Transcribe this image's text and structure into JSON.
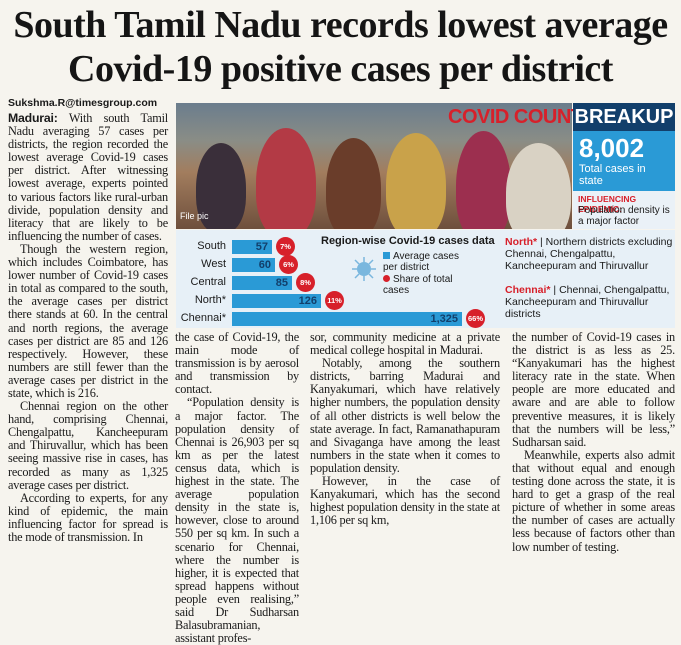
{
  "headline": {
    "line1": "South Tamil Nadu records lowest average",
    "line2": "Covid-19 positive cases per district"
  },
  "byline": "Sukshma.R@timesgroup.com",
  "body": {
    "dateline": "Madurai:",
    "col1": [
      "With south Tamil Nadu averaging 57 cases per districts, the region recorded the lowest average Covid-19 cases per district. After witnessing lowest average, experts pointed to various factors like rural-urban divide, population density and literacy that are likely to be influencing the number of cases.",
      "Though the western region, which includes Coimbatore, has lower number of Covid-19 cases in total as compared to the south, the average cases per district there stands at 60. In the central and north regions, the average cases per district are 85 and 126 respectively. However, these numbers are still fewer than the average cases per district in the state, which is 216.",
      "Chennai region on the other hand, comprising Chennai, Chengalpattu, Kancheepuram and Thiruvallur, which has been seeing massive rise in cases, has recorded as many as 1,325 average cases per district.",
      "According to experts, for any kind of epidemic, the main influencing factor for spread is the mode of transmission. In"
    ],
    "col2": [
      "the case of Covid-19, the main mode of transmission is by aerosol and transmission by contact.",
      "“Population density is a major factor. The population density of Chennai is 26,903 per sq km as per the latest census data, which is highest in the state. The average population density in the state is, however, close to around 550 per sq km. In such a scenario for Chennai, where the number is higher, it is expected that spread happens without people even realising,” said Dr Sudharsan Balasubramanian, assistant profes-"
    ],
    "col3": [
      "sor, community medicine at a private medical college hospital in Madurai.",
      "Notably, among the southern districts, barring Madurai and Kanyakumari, which have relatively higher numbers, the population density of all other districts is well below the state average. In fact, Ramanathapuram and Sivaganga have among the least numbers in the state when it comes to population density.",
      "However, in the case of Kanyakumari, which has the second highest population density in the state at 1,106 per sq km,"
    ],
    "col4": [
      "the number of Covid-19 cases in the district is as less as 25. “Kanyakumari has the highest literacy rate in the state. When people are more educated and aware and are able to follow preventive measures, it is likely that the numbers will be less,” Sudharsan said.",
      "Meanwhile, experts also admit that without equal and enough testing done across the state, it is hard to get a grasp of the real picture of whether in some areas the number of cases are actually less because of factors other than low number of testing."
    ]
  },
  "infographic": {
    "photo_caption": "File pic",
    "covid_count": "COVID COUNT",
    "breakup": "BREAKUP",
    "total_cases": "8,002",
    "total_label": "Total cases in state",
    "influencing_title": "INFLUENCING EPIDEMIC:",
    "influencing_text": "Population density is a major factor",
    "north_tag": "North*",
    "north_text": "Northern districts excluding Chennai, Chengalpattu, Kancheepuram and Thiruvallur",
    "chennai_tag": "Chennai*",
    "chennai_text": "Chennai, Chengalpattu, Kancheepuram and Thiruvallur districts",
    "colors": {
      "accent_red": "#d7202a",
      "bar_blue": "#2a9ad6",
      "navy": "#123f6b"
    }
  },
  "chart_data": {
    "type": "bar",
    "orientation": "horizontal",
    "title": "Region-wise Covid-19 cases data",
    "categories": [
      "South",
      "West",
      "Central",
      "North*",
      "Chennai*"
    ],
    "series": [
      {
        "name": "Average cases per district",
        "values": [
          57,
          60,
          85,
          126,
          1325
        ],
        "value_labels": [
          "57",
          "60",
          "85",
          "126",
          "1,325"
        ]
      },
      {
        "name": "Share of total cases",
        "values": [
          7,
          6,
          8,
          11,
          66
        ],
        "value_labels": [
          "7%",
          "6%",
          "8%",
          "11%",
          "66%"
        ]
      }
    ],
    "legend_position": "center"
  }
}
